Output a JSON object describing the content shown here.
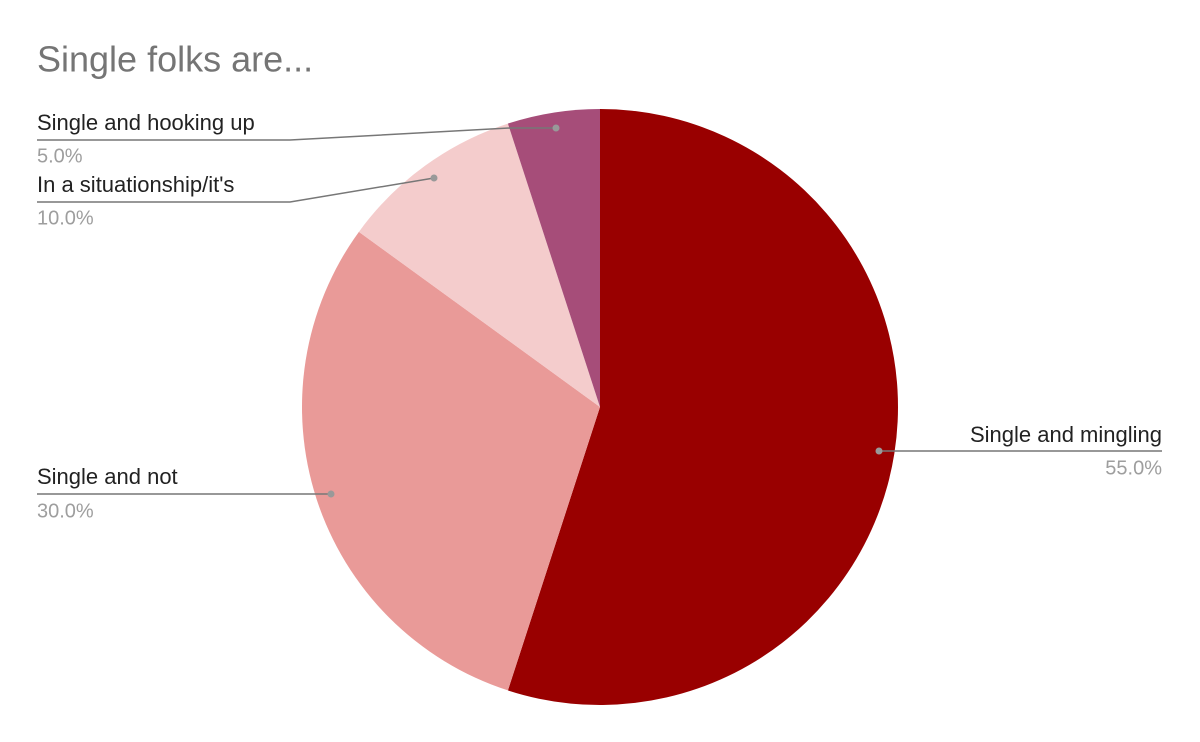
{
  "chart_data": {
    "type": "pie",
    "title": "Single folks are...",
    "categories": [
      "Single and mingling",
      "Single and not",
      "In a situationship/it's",
      "Single and hooking up"
    ],
    "values": [
      55,
      30,
      10,
      5
    ],
    "value_labels": [
      "55.0%",
      "30.0%",
      "10.0%",
      "5.0%"
    ],
    "colors": [
      "#990000",
      "#e99a98",
      "#f4cccc",
      "#a64d79"
    ]
  }
}
